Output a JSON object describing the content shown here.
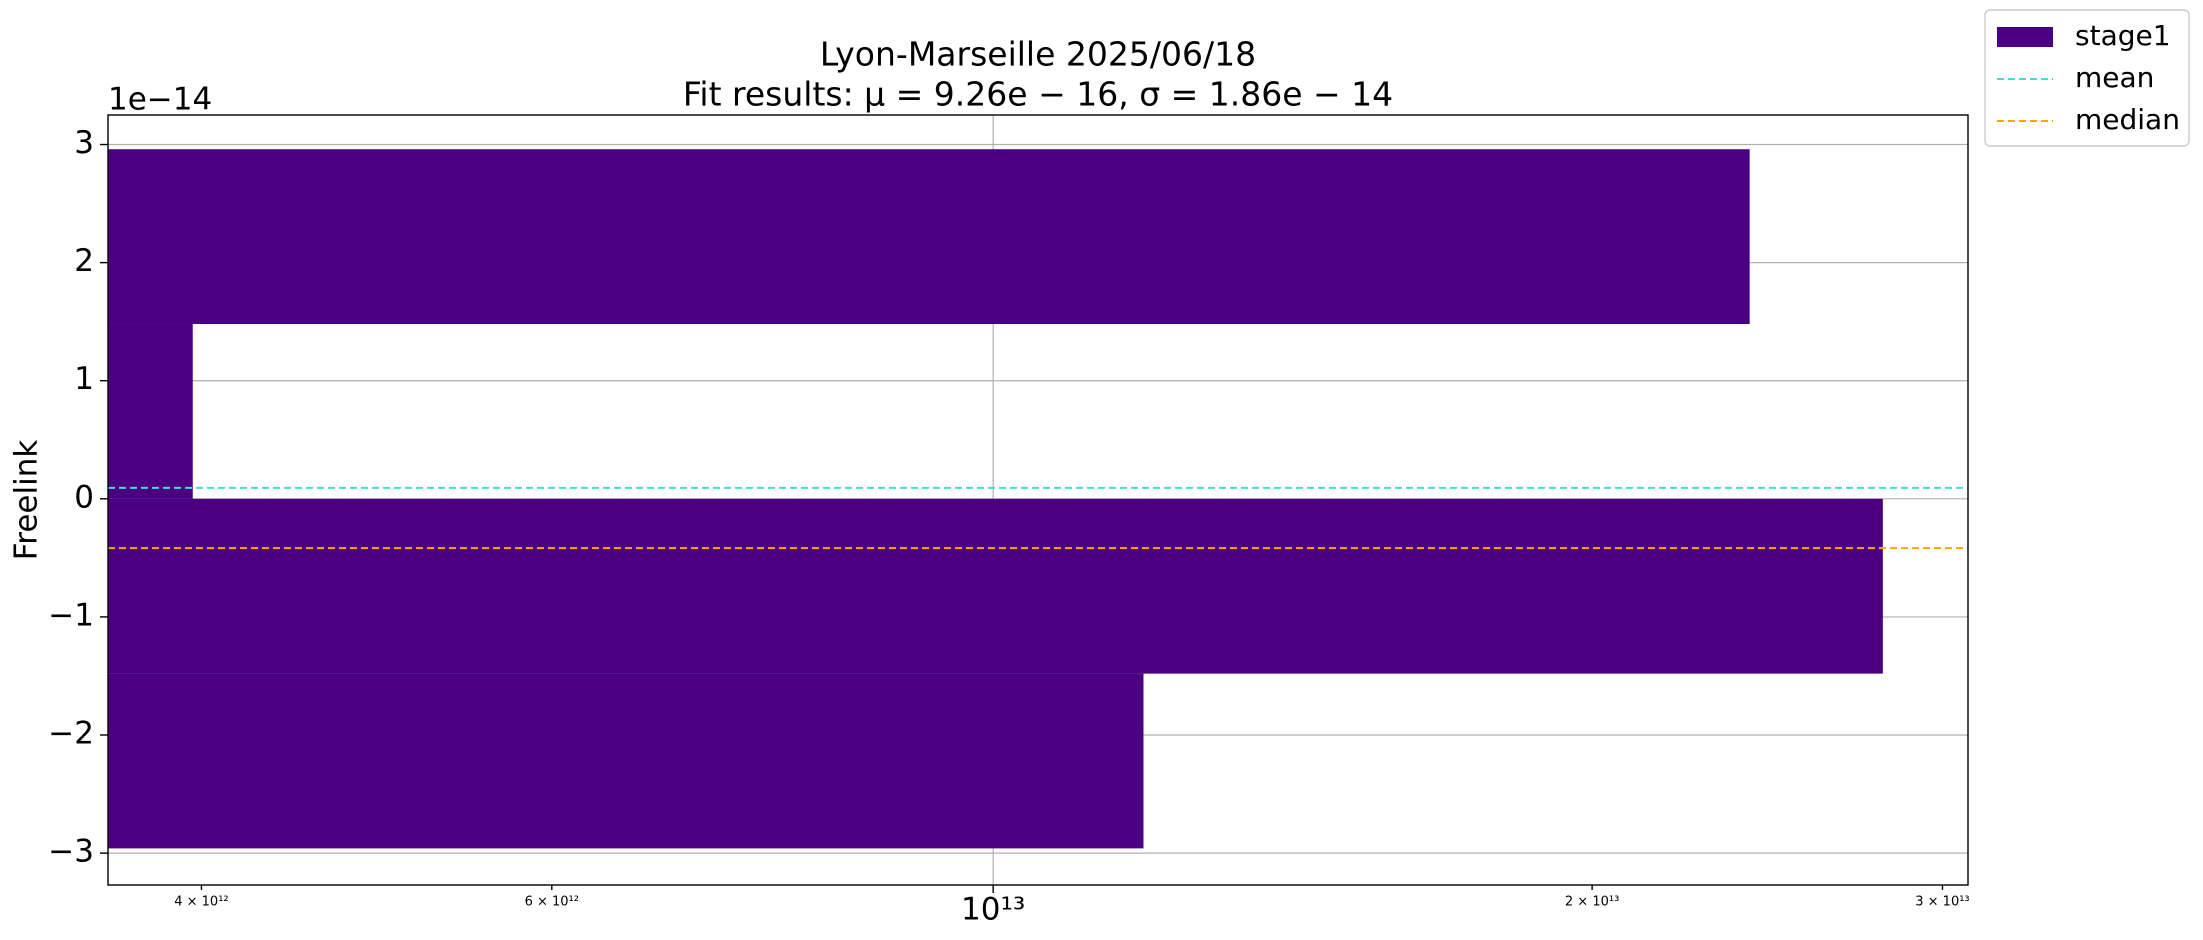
{
  "chart_data": {
    "type": "histogram",
    "orientation": "horizontal",
    "title": "Lyon-Marseille 2025/06/18",
    "subtitle": "Fit results: μ = 9.26e − 16,  σ = 1.86e − 14",
    "ylabel": "Freelink",
    "y_offset_label": "1e−14",
    "bins": [
      -2.96,
      -1.48,
      0,
      1.48,
      2.96
    ],
    "series": [
      {
        "name": "stage1",
        "color": "#4b0082",
        "values": [
          11900000000000.0,
          28000000000000.0,
          3960000000000.0,
          24000000000000.0
        ]
      }
    ],
    "lines": [
      {
        "name": "mean",
        "color": "#40e0d0",
        "value": 0.0926
      },
      {
        "name": "median",
        "color": "#ffa500",
        "value": -0.417
      }
    ],
    "xscale": "log",
    "xlim": [
      3590000000000.0,
      30900000000000.0
    ],
    "xticks": [
      {
        "value": 4000000000000.0,
        "label": "4 × 10¹²",
        "minor": true
      },
      {
        "value": 6000000000000.0,
        "label": "6 × 10¹²",
        "minor": true
      },
      {
        "value": 10000000000000.0,
        "label": "10¹³"
      },
      {
        "value": 20000000000000.0,
        "label": "2 × 10¹³",
        "minor": true
      },
      {
        "value": 30000000000000.0,
        "label": "3 × 10¹³",
        "minor": true
      }
    ],
    "ylim": [
      -3.27,
      3.25
    ],
    "yticks": [
      {
        "value": -3,
        "label": "−3"
      },
      {
        "value": -2,
        "label": "−2"
      },
      {
        "value": -1,
        "label": "−1"
      },
      0,
      1,
      2,
      3
    ],
    "grid": true,
    "legend": "outside upper right"
  }
}
